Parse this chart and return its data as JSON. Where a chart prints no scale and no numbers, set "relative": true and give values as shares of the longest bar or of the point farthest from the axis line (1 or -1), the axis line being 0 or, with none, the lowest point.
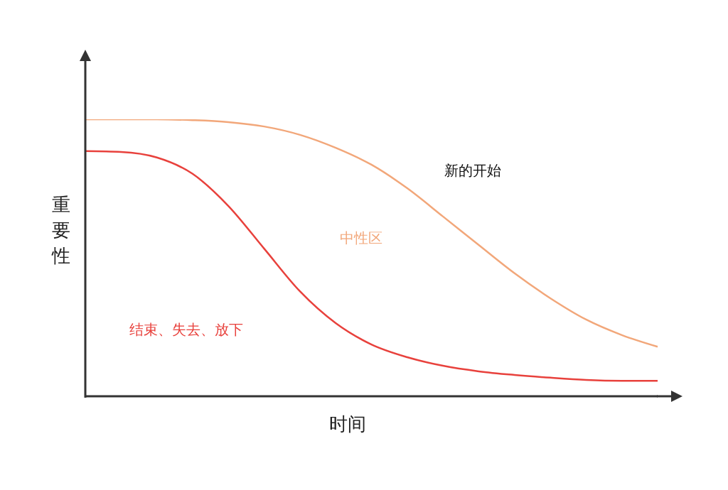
{
  "chart_data": {
    "type": "line",
    "relative": true,
    "xlabel": "时间",
    "ylabel": "重要性",
    "annotations": [
      "新的开始"
    ],
    "marker": "none",
    "grid": false,
    "categories": [
      null,
      null,
      null,
      null,
      null,
      null,
      null,
      null,
      null,
      null,
      null,
      null,
      null,
      null,
      null,
      null,
      null
    ],
    "series": [
      {
        "name": "中性区",
        "color": "#f2a77a",
        "values": [
          1.0,
          1.0,
          1.0,
          0.997,
          0.99,
          0.974,
          0.944,
          0.897,
          0.836,
          0.751,
          0.649,
          0.546,
          0.444,
          0.354,
          0.277,
          0.221,
          0.179
        ]
      },
      {
        "name": "结束、失去、放下",
        "color": "#e8413c",
        "values": [
          0.885,
          0.882,
          0.862,
          0.803,
          0.687,
          0.533,
          0.379,
          0.264,
          0.187,
          0.141,
          0.11,
          0.09,
          0.077,
          0.067,
          0.059,
          0.056,
          0.056
        ]
      }
    ]
  }
}
